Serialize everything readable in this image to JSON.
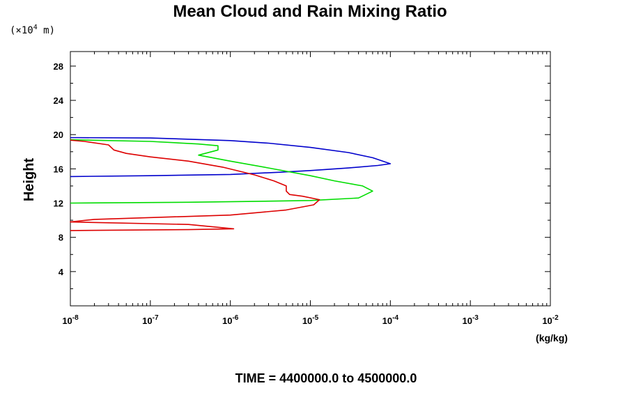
{
  "chart_data": {
    "type": "line",
    "title": "Mean Cloud and Rain Mixing Ratio",
    "y_unit_prefix": "(×10",
    "y_unit_exp": "4",
    "y_unit_suffix": " m)",
    "ylabel": "Height",
    "xlabel": "(kg/kg)",
    "footer": "TIME = 4400000.0 to 4500000.0",
    "x_scale": "log",
    "xlim": [
      1e-08,
      0.01
    ],
    "ylim": [
      0,
      29.7
    ],
    "x_ticks": [
      {
        "base": "10",
        "exp": "-8"
      },
      {
        "base": "10",
        "exp": "-7"
      },
      {
        "base": "10",
        "exp": "-6"
      },
      {
        "base": "10",
        "exp": "-5"
      },
      {
        "base": "10",
        "exp": "-4"
      },
      {
        "base": "10",
        "exp": "-3"
      },
      {
        "base": "10",
        "exp": "-2"
      }
    ],
    "y_ticks": [
      "4",
      "8",
      "12",
      "16",
      "20",
      "24",
      "28"
    ],
    "grid": false,
    "series": [
      {
        "color": "#0000cc",
        "points": [
          [
            1e-08,
            15.1
          ],
          [
            1e-07,
            15.2
          ],
          [
            1e-06,
            15.35
          ],
          [
            4e-06,
            15.6
          ],
          [
            1e-05,
            15.8
          ],
          [
            3e-05,
            16.1
          ],
          [
            7e-05,
            16.4
          ],
          [
            0.0001,
            16.6
          ],
          [
            6e-05,
            17.3
          ],
          [
            3e-05,
            17.9
          ],
          [
            1e-05,
            18.5
          ],
          [
            3e-06,
            19.0
          ],
          [
            1e-06,
            19.3
          ],
          [
            1e-07,
            19.6
          ],
          [
            1e-08,
            19.65
          ]
        ]
      },
      {
        "color": "#00dd00",
        "points": [
          [
            1e-08,
            12.0
          ],
          [
            3e-07,
            12.1
          ],
          [
            2e-06,
            12.2
          ],
          [
            1e-05,
            12.3
          ],
          [
            4e-05,
            12.6
          ],
          [
            6e-05,
            13.4
          ],
          [
            4.5e-05,
            14.0
          ],
          [
            2e-05,
            14.6
          ],
          [
            1e-05,
            15.2
          ],
          [
            3e-06,
            16.1
          ],
          [
            1e-06,
            16.9
          ],
          [
            4e-07,
            17.6
          ],
          [
            7e-07,
            18.2
          ],
          [
            7e-07,
            18.7
          ],
          [
            4e-07,
            18.9
          ],
          [
            1e-07,
            19.2
          ],
          [
            1e-08,
            19.4
          ]
        ]
      },
      {
        "color": "#dd0000",
        "points": [
          [
            1e-08,
            8.8
          ],
          [
            3e-07,
            8.9
          ],
          [
            1.1e-06,
            9.0
          ],
          [
            3e-07,
            9.5
          ],
          [
            1e-08,
            9.8
          ],
          [
            2e-08,
            10.1
          ],
          [
            1e-06,
            10.6
          ],
          [
            5e-06,
            11.2
          ],
          [
            1.1e-05,
            11.8
          ],
          [
            1.3e-05,
            12.4
          ],
          [
            8e-06,
            12.8
          ],
          [
            5.5e-06,
            13.0
          ],
          [
            5e-06,
            13.4
          ],
          [
            5e-06,
            14.0
          ],
          [
            3.5e-06,
            14.6
          ],
          [
            2e-06,
            15.3
          ],
          [
            8e-07,
            16.2
          ],
          [
            3e-07,
            16.9
          ],
          [
            1e-07,
            17.4
          ],
          [
            5e-08,
            17.8
          ],
          [
            3.5e-08,
            18.2
          ],
          [
            3e-08,
            18.8
          ],
          [
            1.5e-08,
            19.2
          ],
          [
            1e-08,
            19.35
          ]
        ]
      }
    ]
  }
}
